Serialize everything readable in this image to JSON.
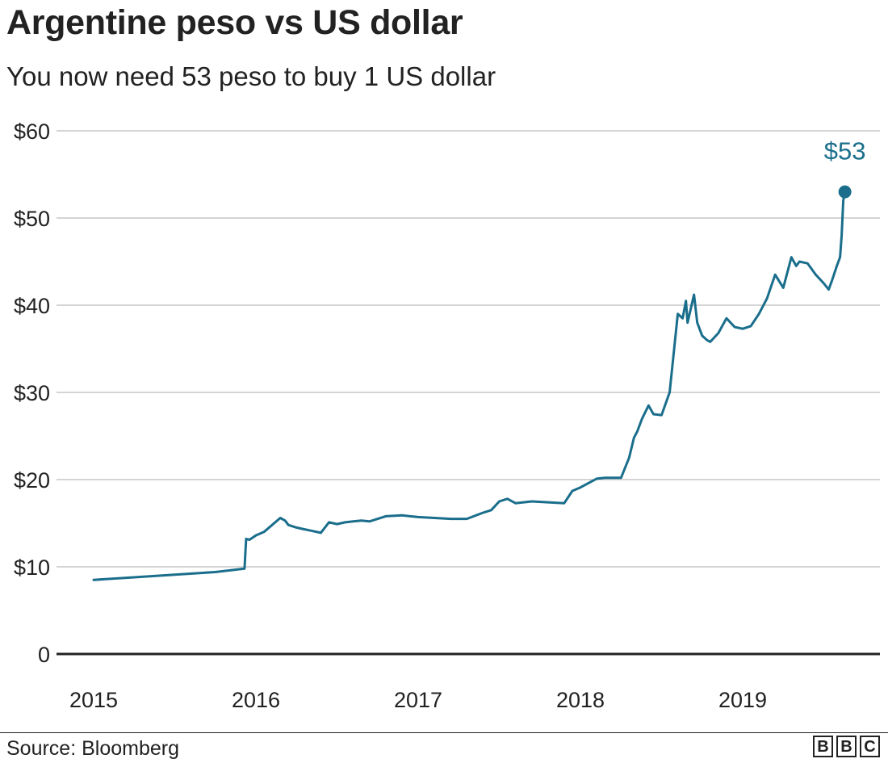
{
  "title": "Argentine peso vs US dollar",
  "subtitle": "You now need 53 peso to buy 1 US dollar",
  "source": "Source: Bloomberg",
  "logo_letters": [
    "B",
    "B",
    "C"
  ],
  "colors": {
    "line": "#1a6e8c",
    "text": "#222222",
    "grid": "#bbbbbb"
  },
  "chart_data": {
    "type": "line",
    "title": "Argentine peso vs US dollar",
    "subtitle": "You now need 53 peso to buy 1 US dollar",
    "xlabel": "",
    "ylabel": "",
    "xlim": [
      2015.0,
      2019.85
    ],
    "ylim": [
      0,
      60
    ],
    "y_ticks": [
      0,
      10,
      20,
      30,
      40,
      50,
      60
    ],
    "y_tick_labels": [
      "0",
      "$10",
      "$20",
      "$30",
      "$40",
      "$50",
      "$60"
    ],
    "x_ticks": [
      2015,
      2016,
      2017,
      2018,
      2019
    ],
    "x_tick_labels": [
      "2015",
      "2016",
      "2017",
      "2018",
      "2019"
    ],
    "grid": true,
    "annotation": {
      "label": "$53",
      "x": 2019.63,
      "y": 53
    },
    "series": [
      {
        "x": [
          2015.0,
          2015.25,
          2015.5,
          2015.75,
          2015.93,
          2015.94,
          2015.96,
          2016.0,
          2016.05,
          2016.1,
          2016.15,
          2016.18,
          2016.2,
          2016.25,
          2016.3,
          2016.35,
          2016.4,
          2016.45,
          2016.5,
          2016.55,
          2016.6,
          2016.65,
          2016.7,
          2016.8,
          2016.9,
          2017.0,
          2017.1,
          2017.2,
          2017.3,
          2017.4,
          2017.45,
          2017.5,
          2017.55,
          2017.6,
          2017.7,
          2017.8,
          2017.9,
          2017.95,
          2018.0,
          2018.05,
          2018.1,
          2018.15,
          2018.2,
          2018.25,
          2018.3,
          2018.33,
          2018.35,
          2018.38,
          2018.42,
          2018.45,
          2018.5,
          2018.55,
          2018.6,
          2018.63,
          2018.65,
          2018.66,
          2018.7,
          2018.72,
          2018.75,
          2018.78,
          2018.8,
          2018.85,
          2018.9,
          2018.95,
          2019.0,
          2019.05,
          2019.1,
          2019.15,
          2019.2,
          2019.25,
          2019.3,
          2019.33,
          2019.35,
          2019.4,
          2019.45,
          2019.5,
          2019.53,
          2019.55,
          2019.58,
          2019.6,
          2019.61,
          2019.62,
          2019.63
        ],
        "values": [
          8.5,
          8.8,
          9.1,
          9.4,
          9.8,
          13.2,
          13.1,
          13.6,
          14.0,
          14.8,
          15.6,
          15.3,
          14.8,
          14.5,
          14.3,
          14.1,
          13.9,
          15.1,
          14.9,
          15.1,
          15.2,
          15.3,
          15.2,
          15.8,
          15.9,
          15.7,
          15.6,
          15.5,
          15.5,
          16.2,
          16.5,
          17.5,
          17.8,
          17.3,
          17.5,
          17.4,
          17.3,
          18.7,
          19.1,
          19.6,
          20.1,
          20.2,
          20.2,
          20.2,
          22.5,
          24.8,
          25.5,
          27.0,
          28.5,
          27.5,
          27.4,
          30.0,
          39.0,
          38.5,
          40.5,
          38.0,
          41.2,
          38.0,
          36.5,
          36.0,
          35.8,
          36.8,
          38.5,
          37.5,
          37.3,
          37.6,
          39.0,
          40.8,
          43.5,
          42.0,
          45.5,
          44.5,
          45.0,
          44.8,
          43.5,
          42.5,
          41.8,
          42.8,
          44.5,
          45.5,
          48.0,
          52.0,
          53.0
        ]
      }
    ]
  }
}
